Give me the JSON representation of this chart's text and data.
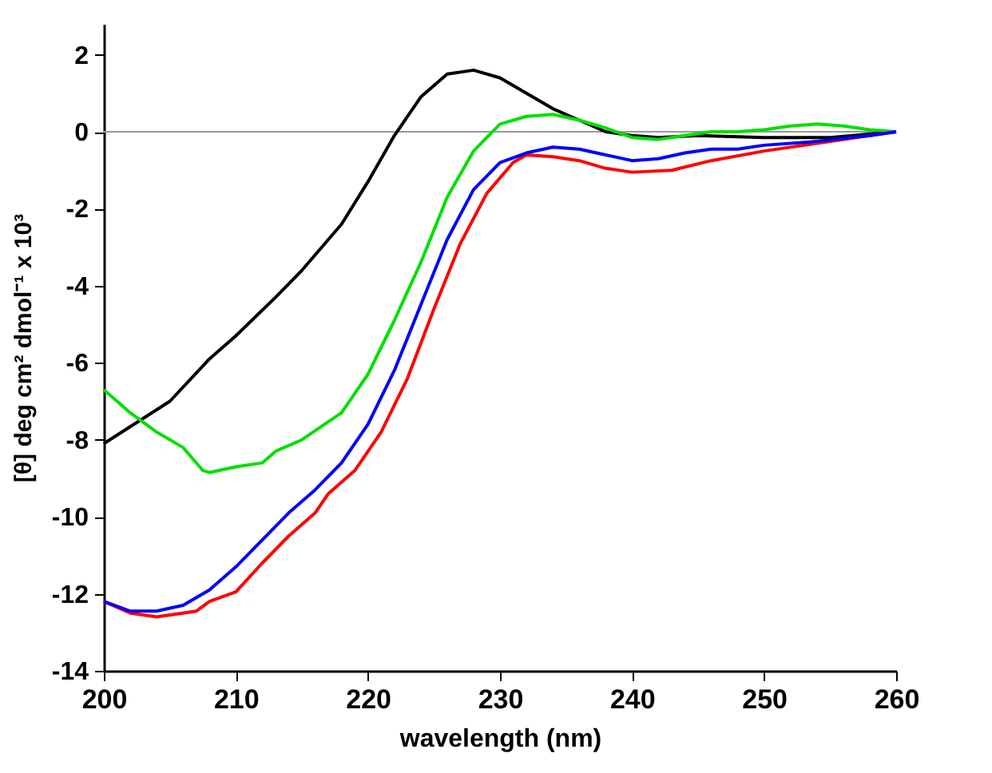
{
  "chart_data": {
    "type": "line",
    "xlabel": "wavelength (nm)",
    "ylabel": "[θ] deg cm² dmol⁻¹ x 10³",
    "xlim": [
      200,
      260
    ],
    "xticks": [
      200,
      210,
      220,
      230,
      240,
      250,
      260
    ],
    "ylim": [
      -14,
      2.8
    ],
    "yticks": [
      -14,
      -12,
      -10,
      -8,
      -6,
      -4,
      -2,
      0,
      2
    ],
    "grid": false,
    "line_style": "solid",
    "marker": "none",
    "ref_lines": [
      {
        "axis": "y",
        "value": 0,
        "color": "#999999"
      }
    ],
    "series": [
      {
        "color": "#000000",
        "x": [
          200,
          205,
          208,
          210,
          213,
          215,
          218,
          220,
          222,
          224,
          226,
          228,
          230,
          232,
          234,
          236,
          238,
          240,
          242,
          245,
          250,
          255,
          260
        ],
        "values": [
          -8.1,
          -7.0,
          -5.9,
          -5.3,
          -4.3,
          -3.6,
          -2.4,
          -1.3,
          -0.1,
          0.9,
          1.5,
          1.6,
          1.4,
          1.0,
          0.6,
          0.3,
          0.0,
          -0.1,
          -0.15,
          -0.1,
          -0.15,
          -0.15,
          0
        ]
      },
      {
        "color": "#00e000",
        "x": [
          200,
          202,
          204,
          206,
          207.5,
          208,
          210,
          212,
          213,
          215,
          218,
          220,
          222,
          224,
          226,
          228,
          230,
          232,
          234,
          236,
          238,
          240,
          242,
          244,
          246,
          248,
          250,
          252,
          254,
          256,
          258,
          260
        ],
        "values": [
          -6.7,
          -7.3,
          -7.8,
          -8.2,
          -8.8,
          -8.85,
          -8.7,
          -8.6,
          -8.3,
          -8.0,
          -7.3,
          -6.3,
          -4.9,
          -3.4,
          -1.7,
          -0.5,
          0.2,
          0.4,
          0.45,
          0.3,
          0.1,
          -0.15,
          -0.2,
          -0.1,
          0.0,
          0.0,
          0.05,
          0.15,
          0.2,
          0.15,
          0.05,
          0
        ]
      },
      {
        "color": "#ff0000",
        "x": [
          200,
          202,
          204,
          206,
          207,
          208,
          210,
          212,
          214,
          216,
          217,
          219,
          221,
          223,
          225,
          227,
          229,
          231,
          232,
          234,
          236,
          238,
          240,
          243,
          246,
          250,
          254,
          258,
          260
        ],
        "values": [
          -12.2,
          -12.5,
          -12.6,
          -12.5,
          -12.45,
          -12.2,
          -11.95,
          -11.2,
          -10.5,
          -9.9,
          -9.4,
          -8.8,
          -7.8,
          -6.4,
          -4.6,
          -2.9,
          -1.6,
          -0.8,
          -0.6,
          -0.65,
          -0.75,
          -0.95,
          -1.05,
          -1.0,
          -0.75,
          -0.5,
          -0.3,
          -0.1,
          0
        ]
      },
      {
        "color": "#0000ff",
        "x": [
          200,
          202,
          204,
          206,
          208,
          210,
          212,
          214,
          216,
          218,
          220,
          222,
          224,
          226,
          228,
          230,
          232,
          234,
          236,
          238,
          240,
          242,
          244,
          246,
          248,
          250,
          254,
          258,
          260
        ],
        "values": [
          -12.2,
          -12.45,
          -12.45,
          -12.3,
          -11.9,
          -11.3,
          -10.6,
          -9.9,
          -9.3,
          -8.6,
          -7.6,
          -6.2,
          -4.5,
          -2.8,
          -1.5,
          -0.8,
          -0.55,
          -0.4,
          -0.45,
          -0.6,
          -0.75,
          -0.7,
          -0.55,
          -0.45,
          -0.45,
          -0.35,
          -0.25,
          -0.1,
          0
        ]
      }
    ]
  }
}
